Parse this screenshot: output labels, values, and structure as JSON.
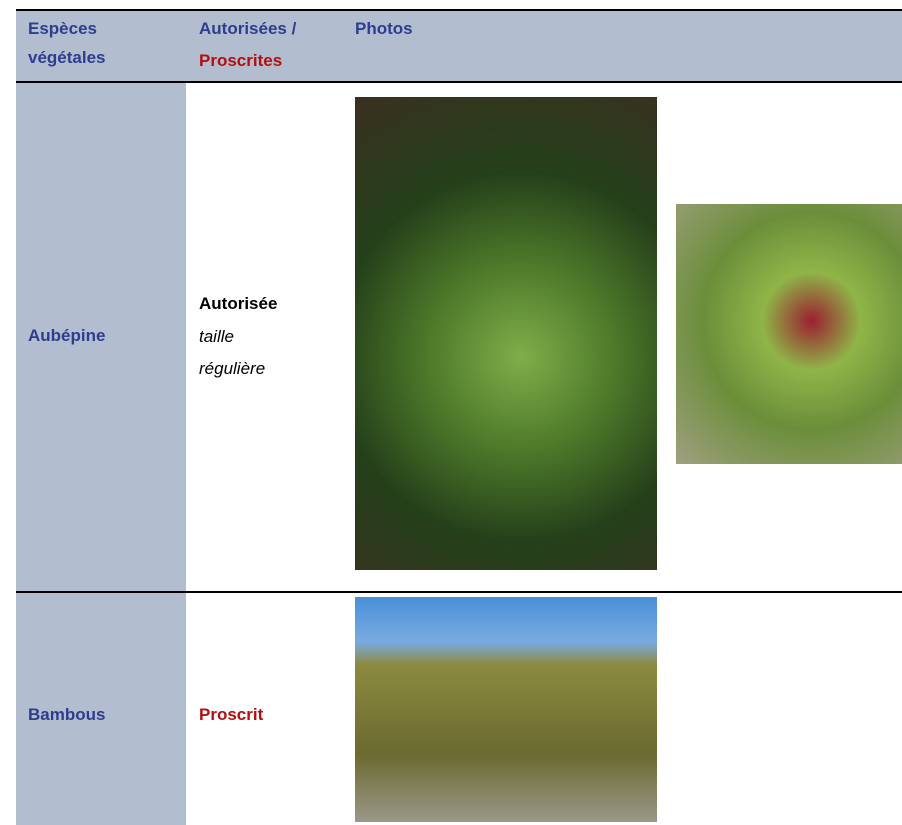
{
  "table": {
    "header": {
      "species": "Espèces végétales",
      "status_allowed": "Autorisées /",
      "status_banned": "Proscrites",
      "photos": "Photos"
    },
    "rows": [
      {
        "species": "Aubépine",
        "status": "Autorisée",
        "note": "taille régulière"
      },
      {
        "species": "Bambous",
        "status": "Proscrit"
      }
    ]
  }
}
